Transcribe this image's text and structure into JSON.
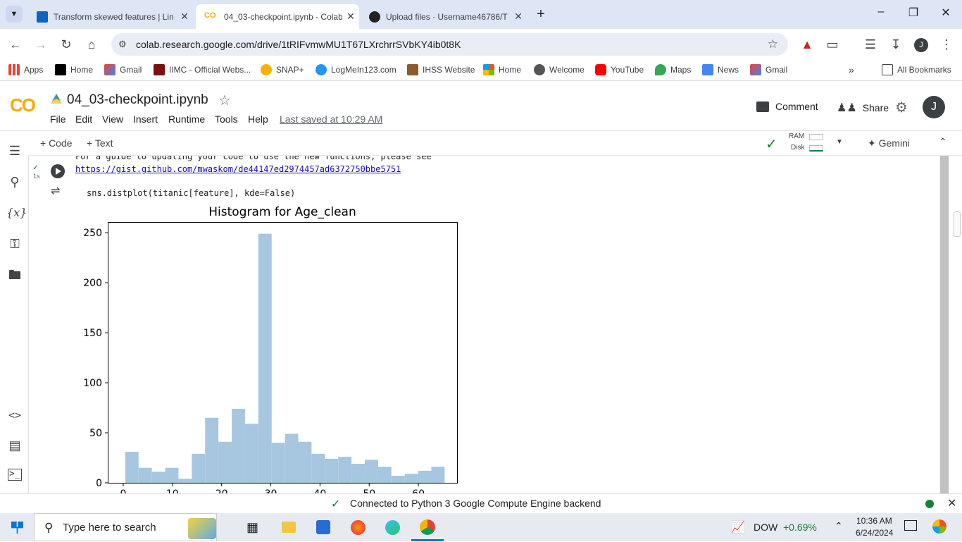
{
  "browser": {
    "tabs": [
      {
        "title": "Transform skewed features | Lin",
        "icon": "linkedin-learning-icon",
        "active": false
      },
      {
        "title": "04_03-checkpoint.ipynb - Colab",
        "icon": "colab-icon",
        "active": true
      },
      {
        "title": "Upload files · Username46786/T",
        "icon": "github-icon",
        "active": false
      }
    ],
    "url": "colab.research.google.com/drive/1tRIFvmwMU1T67LXrchrrSVbKY4ib0t8K",
    "profile_initial": "J",
    "bookmarks": [
      {
        "label": "Apps",
        "icon": "apps-grid-icon"
      },
      {
        "label": "Home",
        "icon": "x-icon"
      },
      {
        "label": "Gmail",
        "icon": "gmail-icon"
      },
      {
        "label": "IIMC - Official Webs...",
        "icon": "iimc-icon"
      },
      {
        "label": "SNAP+",
        "icon": "star-icon"
      },
      {
        "label": "LogMeIn123.com",
        "icon": "logmein-icon"
      },
      {
        "label": "IHSS Website",
        "icon": "ihss-icon"
      },
      {
        "label": "Home",
        "icon": "windows-icon"
      },
      {
        "label": "Welcome",
        "icon": "globe-icon"
      },
      {
        "label": "YouTube",
        "icon": "youtube-icon"
      },
      {
        "label": "Maps",
        "icon": "maps-icon"
      },
      {
        "label": "News",
        "icon": "news-icon"
      },
      {
        "label": "Gmail",
        "icon": "gmail-icon"
      }
    ],
    "all_bookmarks": "All Bookmarks"
  },
  "colab": {
    "logo": "CO",
    "notebook_title": "04_03-checkpoint.ipynb",
    "menu": [
      "File",
      "Edit",
      "View",
      "Insert",
      "Runtime",
      "Tools",
      "Help"
    ],
    "last_saved": "Last saved at 10:29 AM",
    "comment": "Comment",
    "share": "Share",
    "avatar": "J",
    "add_code": "+ Code",
    "add_text": "+ Text",
    "ram": "RAM",
    "disk": "Disk",
    "gemini": "Gemini"
  },
  "cell": {
    "exec_time": "1s",
    "warning_partial": "For a guide to updating your code to use the new functions, please see",
    "warning_link": "https://gist.github.com/mwaskom/de44147ed2974457ad6372750bbe5751",
    "code_line": "sns.distplot(titanic[feature], kde=False)"
  },
  "chart_data": {
    "type": "bar",
    "title": "Histogram for Age_clean",
    "xlabel": "",
    "ylabel": "",
    "ylim": [
      0,
      260
    ],
    "xlim": [
      -3,
      68
    ],
    "yticks": [
      0,
      50,
      100,
      150,
      200,
      250
    ],
    "xticks": [
      0,
      10,
      20,
      30,
      40,
      50,
      60
    ],
    "bin_width": 2.7,
    "bin_starts": [
      0.42,
      3.12,
      5.83,
      8.53,
      11.24,
      13.94,
      16.65,
      19.35,
      22.06,
      24.76,
      27.47,
      30.17,
      32.88,
      35.58,
      38.29,
      40.99,
      43.7,
      46.4,
      49.11,
      51.81,
      54.52,
      57.22,
      59.93,
      62.63
    ],
    "values": [
      31,
      15,
      11,
      15,
      4,
      29,
      65,
      41,
      74,
      59,
      249,
      40,
      49,
      41,
      29,
      24,
      26,
      19,
      23,
      16,
      7,
      9,
      12,
      16
    ],
    "color": "#a6c7df"
  },
  "status": {
    "connected": "Connected to Python 3 Google Compute Engine backend"
  },
  "taskbar": {
    "search_placeholder": "Type here to search",
    "ticker": "DOW",
    "ticker_change": "+0.69%",
    "time": "10:36 AM",
    "date": "6/24/2024"
  }
}
